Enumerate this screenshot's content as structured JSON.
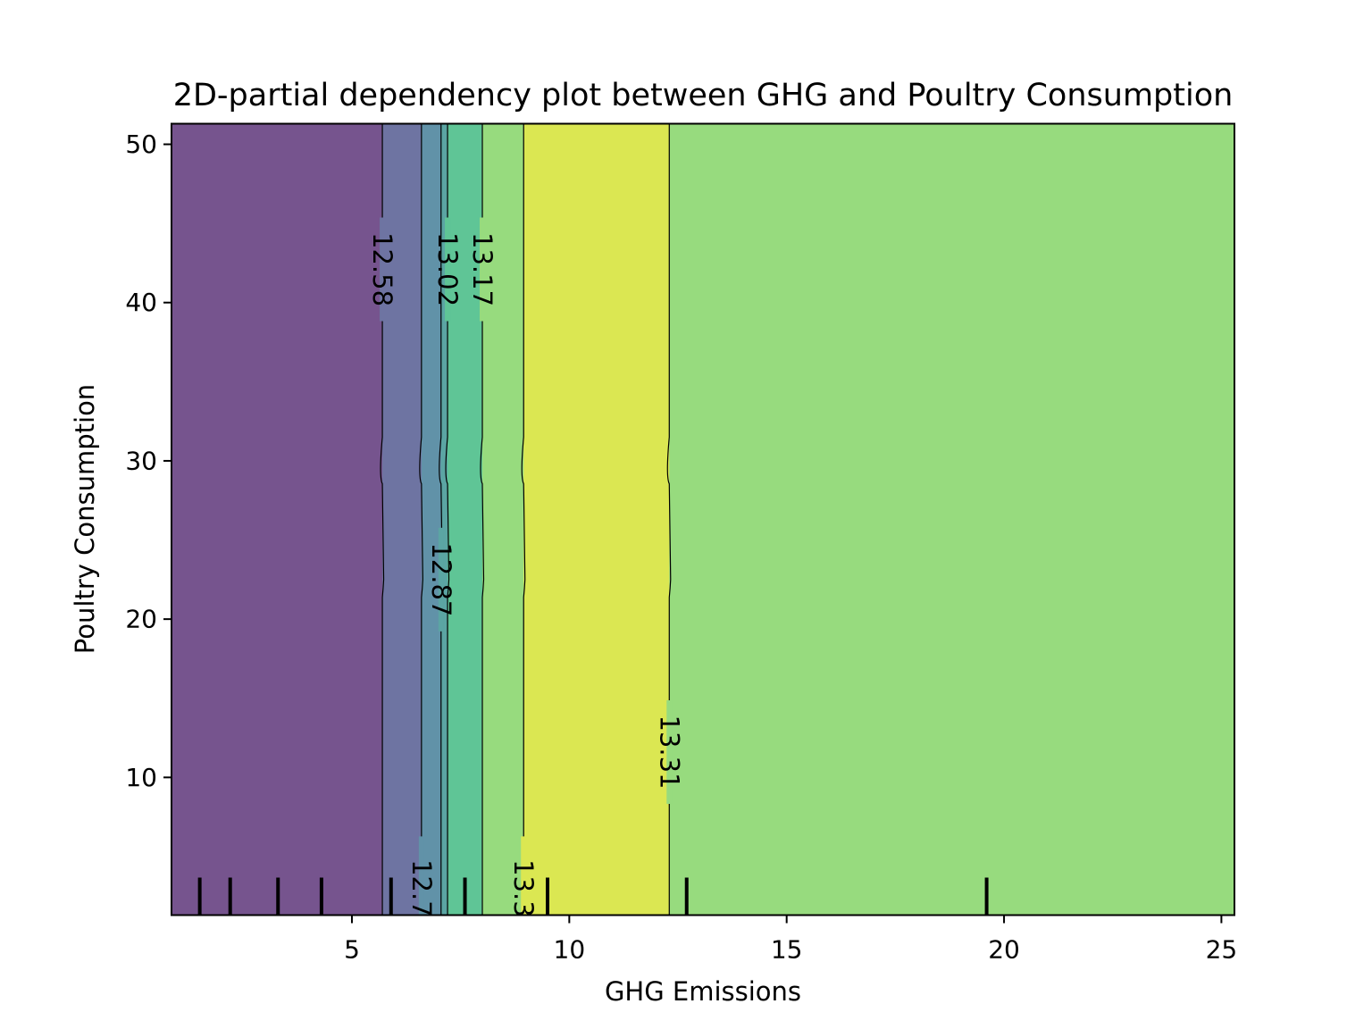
{
  "chart_data": {
    "type": "contour",
    "title": "2D-partial dependency plot between GHG and Poultry Consumption",
    "xlabel": "GHG Emissions",
    "ylabel": "Poultry Consumption",
    "xlim": [
      0.85,
      25.3
    ],
    "ylim": [
      1.3,
      51.3
    ],
    "xticks": [
      5,
      10,
      15,
      20,
      25
    ],
    "yticks": [
      10,
      20,
      30,
      40,
      50
    ],
    "grid": false,
    "bands": [
      {
        "from": 0.85,
        "to": 5.7,
        "color": "#76548e"
      },
      {
        "from": 5.7,
        "to": 6.6,
        "color": "#6e74a2"
      },
      {
        "from": 6.6,
        "to": 7.05,
        "color": "#6192a8"
      },
      {
        "from": 7.05,
        "to": 7.2,
        "color": "#5ba5a3"
      },
      {
        "from": 7.2,
        "to": 8.0,
        "color": "#5fc596"
      },
      {
        "from": 8.0,
        "to": 8.95,
        "color": "#97db7e"
      },
      {
        "from": 8.95,
        "to": 12.3,
        "color": "#dbe752"
      },
      {
        "from": 12.3,
        "to": 25.3,
        "color": "#97db7e"
      }
    ],
    "contour_lines": [
      {
        "x": 5.7,
        "level": "12.58",
        "label_y": 42.1
      },
      {
        "x": 6.6,
        "level": "12.73",
        "label_y": 3.0,
        "label_text": "12.7"
      },
      {
        "x": 7.05,
        "level": "12.87",
        "label_y": 22.5
      },
      {
        "x": 7.2,
        "level": "13.02",
        "label_y": 42.1
      },
      {
        "x": 8.0,
        "level": "13.17",
        "label_y": 42.1
      },
      {
        "x": 8.95,
        "level": "13.3",
        "label_y": 3.0,
        "label_text": "13.3"
      },
      {
        "x": 12.3,
        "level": "13.31",
        "label_y": 11.6
      }
    ],
    "rug_x": [
      1.5,
      2.2,
      3.3,
      4.3,
      5.9,
      7.6,
      9.5,
      12.7,
      19.6
    ]
  }
}
